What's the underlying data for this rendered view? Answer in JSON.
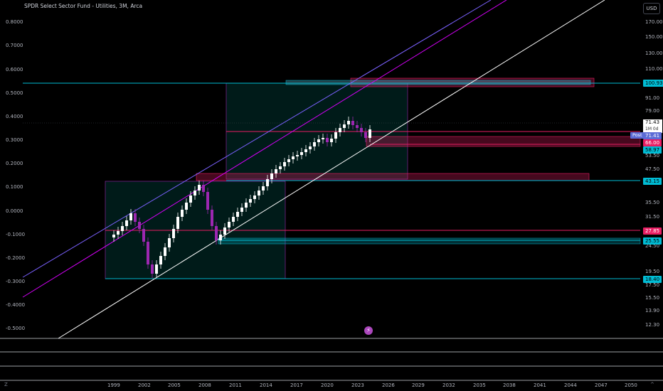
{
  "header": {
    "title": "SPDR Select Sector Fund - Utilities, 3M, Arca",
    "currency_button": "USD"
  },
  "left_axis": {
    "labels": [
      "0.8000",
      "0.7000",
      "0.6000",
      "0.5000",
      "0.4000",
      "0.3000",
      "0.2000",
      "0.1000",
      "0.0000",
      "-0.1000",
      "-0.2000",
      "-0.3000",
      "-0.4000",
      "-0.5000"
    ]
  },
  "right_axis": {
    "labels": [
      "170.00",
      "150.00",
      "130.00",
      "110.00",
      "91.00",
      "79.00",
      "53.50",
      "47.50",
      "35.50",
      "31.50",
      "24.50",
      "19.50",
      "17.50",
      "15.50",
      "13.90",
      "12.30"
    ]
  },
  "x_axis": {
    "labels": [
      "1999",
      "2002",
      "2005",
      "2008",
      "2011",
      "2014",
      "2017",
      "2020",
      "2023",
      "2026",
      "2029",
      "2032",
      "2035",
      "2038",
      "2041",
      "2044",
      "2047",
      "2050"
    ]
  },
  "price_box": {
    "price": "71.43",
    "countdown": "1M 0d"
  },
  "post_label": {
    "text": "Post",
    "value": "71.41"
  },
  "level_badges": [
    {
      "value": "100.93",
      "color": "#00bcd4",
      "text_color": "#000000"
    },
    {
      "value": "66.00",
      "color": "#e91e63",
      "text_color": "#ffffff"
    },
    {
      "value": "58.97",
      "color": "#00bcd4",
      "text_color": "#000000"
    },
    {
      "value": "43.15",
      "color": "#00bcd4",
      "text_color": "#000000"
    },
    {
      "value": "27.85",
      "color": "#e91e63",
      "text_color": "#ffffff"
    },
    {
      "value": "25.55",
      "color": "#00bcd4",
      "text_color": "#000000"
    },
    {
      "value": "18.40",
      "color": "#00bcd4",
      "text_color": "#000000"
    }
  ],
  "colors": {
    "up_candle": "#ffffff",
    "down_candle": "#9c27b0",
    "cyan_line": "#00bcd4",
    "pink_line": "#e91e63",
    "channel_purple": "#7b61ff",
    "channel_magenta": "#d500f9",
    "trendline": "#ffffff",
    "box_fill": "rgba(0,150,136,0.18)"
  },
  "bottom_icons": {
    "left": "gear-icon",
    "right": "caret-up-icon"
  }
}
